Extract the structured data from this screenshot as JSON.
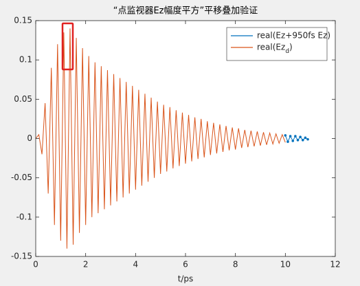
{
  "chart_data": {
    "type": "line",
    "title": "“点监视器Ez幅度平方”平移叠加验证",
    "x_label": "t/ps",
    "xlim": [
      0,
      12
    ],
    "xticks": [
      0,
      2,
      4,
      6,
      8,
      10,
      12
    ],
    "ylim": [
      -0.15,
      0.15
    ],
    "yticks": [
      -0.15,
      -0.1,
      -0.05,
      0,
      0.05,
      0.1,
      0.15
    ],
    "grid": false,
    "legend": "northeast",
    "series": [
      {
        "name": "real(Ez+950fs Ez)",
        "color": "#0072bd",
        "markers": true,
        "x": [
          10.0,
          10.1,
          10.2,
          10.3,
          10.4,
          10.5,
          10.6,
          10.7,
          10.8,
          10.9
        ],
        "values": [
          0.004,
          -0.004,
          0.003,
          -0.003,
          0.003,
          -0.002,
          0.002,
          -0.002,
          0.001,
          -0.001
        ]
      },
      {
        "name": "real(Ez_d)",
        "color": "#d95319",
        "markers": false,
        "x": [
          0,
          0.125,
          0.25,
          0.375,
          0.5,
          0.625,
          0.75,
          0.875,
          1.0,
          1.125,
          1.25,
          1.375,
          1.5,
          1.625,
          1.75,
          1.875,
          2.0,
          2.125,
          2.25,
          2.375,
          2.5,
          2.625,
          2.75,
          2.875,
          3.0,
          3.125,
          3.25,
          3.375,
          3.5,
          3.625,
          3.75,
          3.875,
          4.0,
          4.125,
          4.25,
          4.375,
          4.5,
          4.625,
          4.75,
          4.875,
          5.0,
          5.125,
          5.25,
          5.375,
          5.5,
          5.625,
          5.75,
          5.875,
          6.0,
          6.125,
          6.25,
          6.375,
          6.5,
          6.625,
          6.75,
          6.875,
          7.0,
          7.125,
          7.25,
          7.375,
          7.5,
          7.625,
          7.75,
          7.875,
          8.0,
          8.125,
          8.25,
          8.375,
          8.5,
          8.625,
          8.75,
          8.875,
          9.0,
          9.125,
          9.25,
          9.375,
          9.5,
          9.625,
          9.75,
          9.875,
          10.0
        ],
        "values": [
          0,
          0.005,
          -0.02,
          0.045,
          -0.07,
          0.09,
          -0.11,
          0.12,
          -0.13,
          0.135,
          -0.14,
          0.14,
          -0.135,
          0.128,
          -0.12,
          0.115,
          -0.11,
          0.105,
          -0.1,
          0.097,
          -0.095,
          0.092,
          -0.09,
          0.087,
          -0.085,
          0.082,
          -0.08,
          0.077,
          -0.075,
          0.072,
          -0.07,
          0.067,
          -0.065,
          0.062,
          -0.06,
          0.057,
          -0.055,
          0.052,
          -0.05,
          0.047,
          -0.045,
          0.043,
          -0.042,
          0.04,
          -0.038,
          0.036,
          -0.035,
          0.033,
          -0.032,
          0.03,
          -0.029,
          0.027,
          -0.026,
          0.025,
          -0.024,
          0.022,
          -0.021,
          0.02,
          -0.019,
          0.018,
          -0.017,
          0.016,
          -0.015,
          0.014,
          -0.014,
          0.013,
          -0.012,
          0.011,
          -0.011,
          0.01,
          -0.01,
          0.009,
          -0.009,
          0.008,
          -0.008,
          0.007,
          -0.007,
          0.006,
          -0.006,
          0.005,
          -0.005
        ]
      }
    ]
  }
}
